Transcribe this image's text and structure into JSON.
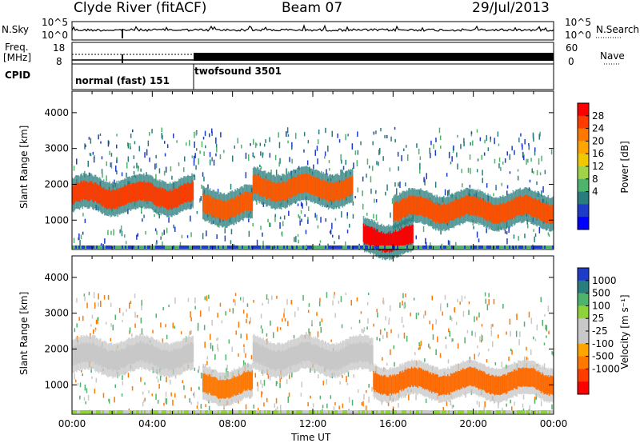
{
  "header": {
    "station": "Clyde River (fitACF)",
    "beam": "Beam 07",
    "date": "29/Jul/2013"
  },
  "strips": {
    "nsky_label": "N.Sky",
    "nsky_ticks": [
      "10^5",
      "10^0"
    ],
    "nsearch_label": "N.Search",
    "nsearch_ticks": [
      "10^5",
      "10^0"
    ],
    "freq_label": "Freq.",
    "freq_unit": "[MHz]",
    "freq_ticks": [
      "18",
      "8"
    ],
    "nave_label": "Nave",
    "nave_ticks": [
      "60",
      "0"
    ],
    "cpid_label": "CPID",
    "cpid_segments": [
      {
        "name": "normal (fast) 151"
      },
      {
        "name": "twofsound 3501"
      }
    ]
  },
  "chart_data": [
    {
      "type": "heatmap",
      "panel": "power",
      "ylabel": "Slant Range [km]",
      "yticks": [
        1000,
        2000,
        3000,
        4000
      ],
      "ylim": [
        180,
        4600
      ],
      "xlim": [
        "00:00",
        "24:00"
      ],
      "colorbar": {
        "label": "Power [dB]",
        "ticks": [
          "28",
          "24",
          "20",
          "16",
          "12",
          "8",
          "4"
        ],
        "colors": [
          "#ff0000",
          "#ff3c00",
          "#ff7800",
          "#ffa500",
          "#f0c800",
          "#a0d24a",
          "#4eb36b",
          "#2a7d7d",
          "#1e3cc8",
          "#0000ff"
        ]
      },
      "bands": [
        {
          "t_start": 0,
          "t_end": 6,
          "range": 1700,
          "color": "#ff3c00"
        },
        {
          "t_start": 6.5,
          "t_end": 9,
          "range": 1400,
          "color": "#ff5a00"
        },
        {
          "t_start": 9,
          "t_end": 14,
          "range": 1900,
          "color": "#ff5a00"
        },
        {
          "t_start": 14.5,
          "t_end": 17,
          "range": 500,
          "color": "#ff0000"
        },
        {
          "t_start": 16,
          "t_end": 24,
          "range": 1300,
          "color": "#ff5000"
        }
      ]
    },
    {
      "type": "heatmap",
      "panel": "velocity",
      "ylabel": "Slant Range [km]",
      "yticks": [
        1000,
        2000,
        3000,
        4000
      ],
      "ylim": [
        180,
        4600
      ],
      "xlabel": "Time UT",
      "xticks": [
        "00:00",
        "04:00",
        "08:00",
        "12:00",
        "16:00",
        "20:00",
        "00:00"
      ],
      "colorbar": {
        "label": "Velocity [m s⁻¹]",
        "ticks": [
          "1000",
          "500",
          "100",
          "25",
          "-25",
          "-100",
          "-500",
          "-1000"
        ],
        "colors": [
          "#1e3cc8",
          "#2a7d7d",
          "#4eb36b",
          "#8ed33a",
          "#c8c8c8",
          "#c8c8c8",
          "#ffa500",
          "#ff7800",
          "#ff3c00",
          "#ff0000"
        ]
      },
      "bands": [
        {
          "t_start": 0,
          "t_end": 6,
          "range": 1800,
          "color": "#c8c8c8"
        },
        {
          "t_start": 6.5,
          "t_end": 9,
          "range": 1000,
          "color": "#ff7800"
        },
        {
          "t_start": 9,
          "t_end": 15,
          "range": 1800,
          "color": "#c8c8c8"
        },
        {
          "t_start": 15,
          "t_end": 24,
          "range": 1100,
          "color": "#ff6a00"
        }
      ]
    }
  ]
}
